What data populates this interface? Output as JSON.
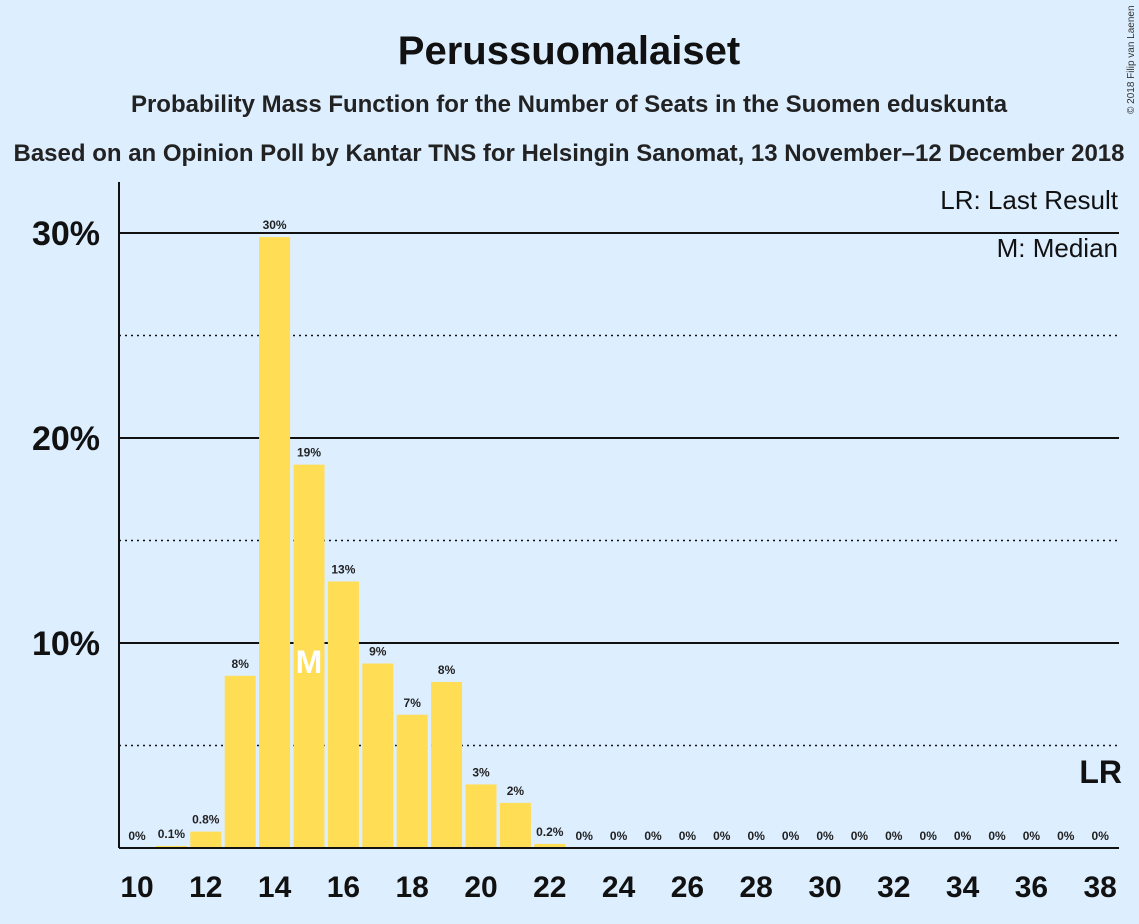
{
  "chart_data": {
    "type": "bar",
    "title": "Perussuomalaiset",
    "subtitle": "Probability Mass Function for the Number of Seats in the Suomen eduskunta",
    "subtitle2": "Based on an Opinion Poll by Kantar TNS for Helsingin Sanomat, 13 November–12 December 2018",
    "copyright": "© 2018 Filip van Laenen",
    "legend": {
      "last_result": "LR: Last Result",
      "median": "M: Median"
    },
    "lr_marker": "LR",
    "median_marker": "M",
    "median_seat": 15,
    "last_result_seat": 38,
    "x_ticks": [
      10,
      12,
      14,
      16,
      18,
      20,
      22,
      24,
      26,
      28,
      30,
      32,
      34,
      36,
      38
    ],
    "y_ticks": [
      "10%",
      "20%",
      "30%"
    ],
    "ylim": [
      0,
      32.5
    ],
    "bar_color": "#ffdd55",
    "seats": [
      10,
      11,
      12,
      13,
      14,
      15,
      16,
      17,
      18,
      19,
      20,
      21,
      22,
      23,
      24,
      25,
      26,
      27,
      28,
      29,
      30,
      31,
      32,
      33,
      34,
      35,
      36,
      37,
      38
    ],
    "values": [
      0,
      0.1,
      0.8,
      8.4,
      29.8,
      18.7,
      13.0,
      9.0,
      6.5,
      8.1,
      3.1,
      2.2,
      0.2,
      0,
      0,
      0,
      0,
      0,
      0,
      0,
      0,
      0,
      0,
      0,
      0,
      0,
      0,
      0,
      0
    ],
    "labels": [
      "0%",
      "0.1%",
      "0.8%",
      "8%",
      "30%",
      "19%",
      "13%",
      "9%",
      "7%",
      "8%",
      "3%",
      "2%",
      "0.2%",
      "0%",
      "0%",
      "0%",
      "0%",
      "0%",
      "0%",
      "0%",
      "0%",
      "0%",
      "0%",
      "0%",
      "0%",
      "0%",
      "0%",
      "0%",
      "0%"
    ]
  }
}
